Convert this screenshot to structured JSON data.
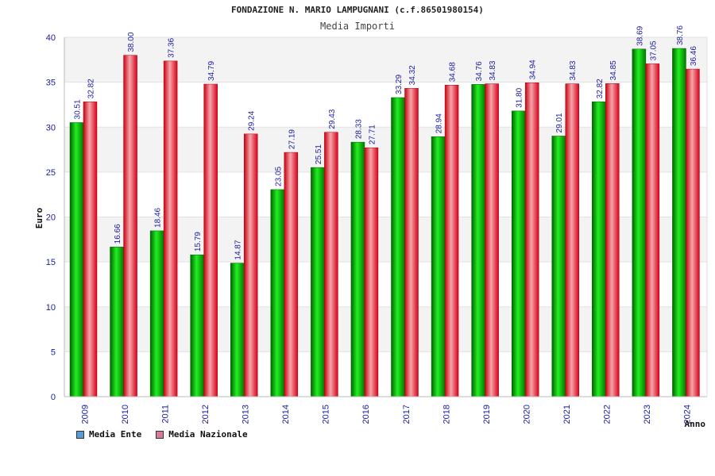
{
  "chart_data": {
    "type": "bar",
    "title": "FONDAZIONE N. MARIO LAMPUGNANI (c.f.86501980154)",
    "subtitle": "Media Importi",
    "xlabel": "Anno",
    "ylabel": "Euro",
    "ylim": [
      0,
      40
    ],
    "yticks": [
      "0",
      "5",
      "10",
      "15",
      "20",
      "25",
      "30",
      "35",
      "40"
    ],
    "categories": [
      "2009",
      "2010",
      "2011",
      "2012",
      "2013",
      "2014",
      "2015",
      "2016",
      "2017",
      "2018",
      "2019",
      "2020",
      "2021",
      "2022",
      "2023",
      "2024"
    ],
    "series": [
      {
        "name": "Media Ente",
        "color": "#00aa00",
        "values": [
          30.51,
          16.66,
          18.46,
          15.79,
          14.87,
          23.05,
          25.51,
          28.33,
          33.29,
          28.94,
          34.76,
          31.8,
          29.01,
          32.82,
          38.69,
          38.76
        ],
        "labels": [
          "30.51",
          "16.66",
          "18.46",
          "15.79",
          "14.87",
          "23.05",
          "25.51",
          "28.33",
          "33.29",
          "28.94",
          "34.76",
          "31.80",
          "29.01",
          "32.82",
          "38.69",
          "38.76"
        ]
      },
      {
        "name": "Media Nazionale",
        "color": "#e8202a",
        "values": [
          32.82,
          38.0,
          37.36,
          34.79,
          29.24,
          27.19,
          29.43,
          27.71,
          34.32,
          34.68,
          34.83,
          34.94,
          34.83,
          34.85,
          37.05,
          36.46
        ],
        "labels": [
          "32.82",
          "38.00",
          "37.36",
          "34.79",
          "29.24",
          "27.19",
          "29.43",
          "27.71",
          "34.32",
          "34.68",
          "34.83",
          "34.94",
          "34.83",
          "34.85",
          "37.05",
          "36.46"
        ]
      }
    ]
  },
  "legend": {
    "items": [
      {
        "label": "Media Ente",
        "color": "#5b9bd5"
      },
      {
        "label": "Media Nazionale",
        "color": "#d9799b"
      }
    ]
  }
}
